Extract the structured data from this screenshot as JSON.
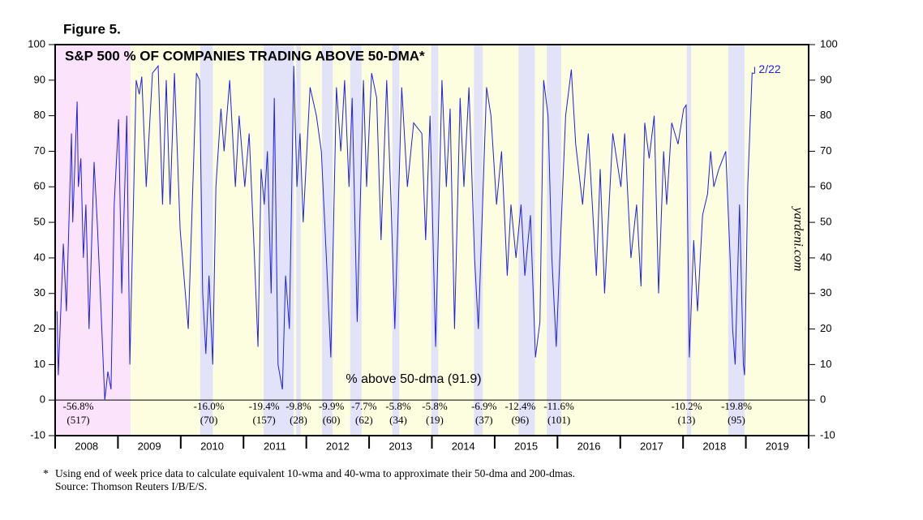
{
  "chart_data": {
    "type": "line",
    "figure_label": "Figure 5.",
    "title": "S&P 500 % OF COMPANIES TRADING ABOVE 50-DMA*",
    "annotation": "% above 50-dma (91.9)",
    "last_date_label": "2/22",
    "watermark": "yardeni.com",
    "footnote_mark": "*",
    "footnote": "Using end of week price data to calculate equivalent 10-wma and 40-wma to approximate their 50-dma and 200-dmas.",
    "source": "Source: Thomson Reuters I/B/E/S.",
    "xlim": [
      2008,
      2020
    ],
    "xticks": [
      2008,
      2009,
      2010,
      2011,
      2012,
      2013,
      2014,
      2015,
      2016,
      2017,
      2018,
      2019,
      2020
    ],
    "year_labels": [
      "2008",
      "2009",
      "2010",
      "2011",
      "2012",
      "2013",
      "2014",
      "2015",
      "2016",
      "2017",
      "2018",
      "2019"
    ],
    "ylim": [
      -10,
      100
    ],
    "yticks": [
      -10,
      0,
      10,
      20,
      30,
      40,
      50,
      60,
      70,
      80,
      90,
      100
    ],
    "background_color": "#fdfde0",
    "bear_color": "#fbe3fb",
    "correction_color": "#e2e2f8",
    "color": "#1f1fe6",
    "corrections": [
      {
        "start": 2008.0,
        "end": 2009.2,
        "pct": "-56.8%",
        "days": "(517)"
      },
      {
        "start": 2010.31,
        "end": 2010.51,
        "pct": "-16.0%",
        "days": "(70)"
      },
      {
        "start": 2011.32,
        "end": 2011.8,
        "pct": "-19.4%",
        "days": "(157)"
      },
      {
        "start": 2011.84,
        "end": 2011.91,
        "pct": "-9.8%",
        "days": "(28)"
      },
      {
        "start": 2012.25,
        "end": 2012.42,
        "pct": "-9.9%",
        "days": "(60)"
      },
      {
        "start": 2012.7,
        "end": 2012.88,
        "pct": "-7.7%",
        "days": "(62)"
      },
      {
        "start": 2013.37,
        "end": 2013.48,
        "pct": "-5.8%",
        "days": "(34)"
      },
      {
        "start": 2013.99,
        "end": 2014.1,
        "pct": "-5.8%",
        "days": "(19)"
      },
      {
        "start": 2014.67,
        "end": 2014.81,
        "pct": "-6.9%",
        "days": "(37)"
      },
      {
        "start": 2015.38,
        "end": 2015.64,
        "pct": "-12.4%",
        "days": "(96)"
      },
      {
        "start": 2015.83,
        "end": 2016.06,
        "pct": "-11.6%",
        "days": "(101)"
      },
      {
        "start": 2018.06,
        "end": 2018.13,
        "pct": "-10.2%",
        "days": "(13)"
      },
      {
        "start": 2018.72,
        "end": 2018.98,
        "pct": "-19.8%",
        "days": "(95)"
      }
    ],
    "x": [
      2008.03,
      2008.05,
      2008.13,
      2008.18,
      2008.26,
      2008.28,
      2008.35,
      2008.37,
      2008.41,
      2008.45,
      2008.49,
      2008.54,
      2008.62,
      2008.67,
      2008.72,
      2008.79,
      2008.84,
      2008.89,
      2008.94,
      2009.01,
      2009.06,
      2009.1,
      2009.14,
      2009.19,
      2009.29,
      2009.34,
      2009.38,
      2009.45,
      2009.55,
      2009.64,
      2009.71,
      2009.77,
      2009.83,
      2009.9,
      2009.99,
      2010.12,
      2010.25,
      2010.3,
      2010.35,
      2010.4,
      2010.45,
      2010.51,
      2010.56,
      2010.64,
      2010.69,
      2010.78,
      2010.87,
      2010.93,
      2011.02,
      2011.09,
      2011.17,
      2011.23,
      2011.28,
      2011.33,
      2011.38,
      2011.44,
      2011.49,
      2011.55,
      2011.62,
      2011.67,
      2011.73,
      2011.8,
      2011.85,
      2011.9,
      2011.95,
      2012.06,
      2012.16,
      2012.24,
      2012.32,
      2012.39,
      2012.48,
      2012.55,
      2012.61,
      2012.68,
      2012.73,
      2012.81,
      2012.91,
      2012.96,
      2013.04,
      2013.12,
      2013.19,
      2013.28,
      2013.35,
      2013.41,
      2013.52,
      2013.61,
      2013.71,
      2013.84,
      2013.9,
      2013.97,
      2014.06,
      2014.16,
      2014.23,
      2014.29,
      2014.36,
      2014.45,
      2014.51,
      2014.59,
      2014.68,
      2014.74,
      2014.87,
      2014.94,
      2015.03,
      2015.11,
      2015.2,
      2015.26,
      2015.34,
      2015.42,
      2015.48,
      2015.57,
      2015.65,
      2015.72,
      2015.78,
      2015.85,
      2015.91,
      2015.98,
      2016.06,
      2016.13,
      2016.22,
      2016.29,
      2016.4,
      2016.49,
      2016.62,
      2016.68,
      2016.75,
      2016.88,
      2017.01,
      2017.07,
      2017.17,
      2017.26,
      2017.33,
      2017.39,
      2017.46,
      2017.54,
      2017.61,
      2017.69,
      2017.74,
      2017.82,
      2017.92,
      2018.01,
      2018.05,
      2018.1,
      2018.17,
      2018.23,
      2018.31,
      2018.39,
      2018.44,
      2018.49,
      2018.57,
      2018.68,
      2018.75,
      2018.79,
      2018.83,
      2018.9,
      2018.96,
      2018.98,
      2019.03,
      2019.1,
      2019.14
    ],
    "values": [
      25,
      7,
      44,
      25,
      75,
      50,
      84,
      60,
      68,
      40,
      55,
      20,
      67,
      50,
      30,
      0,
      8,
      3,
      55,
      79,
      30,
      55,
      80,
      10,
      90,
      86,
      91,
      60,
      92,
      94,
      55,
      90,
      55,
      92,
      48,
      20,
      92,
      90,
      30,
      13,
      35,
      10,
      60,
      82,
      70,
      90,
      60,
      80,
      60,
      75,
      42,
      15,
      65,
      55,
      70,
      30,
      85,
      10,
      3,
      35,
      20,
      94,
      60,
      75,
      50,
      88,
      80,
      70,
      40,
      12,
      88,
      70,
      90,
      60,
      85,
      22,
      90,
      60,
      92,
      85,
      45,
      90,
      55,
      20,
      88,
      60,
      78,
      75,
      45,
      80,
      15,
      90,
      60,
      82,
      20,
      85,
      60,
      88,
      40,
      20,
      88,
      80,
      55,
      70,
      35,
      55,
      40,
      55,
      35,
      52,
      12,
      22,
      90,
      80,
      40,
      15,
      50,
      80,
      93,
      72,
      55,
      75,
      35,
      65,
      30,
      75,
      60,
      75,
      40,
      55,
      32,
      78,
      68,
      80,
      30,
      70,
      55,
      78,
      72,
      82,
      83,
      12,
      45,
      25,
      52,
      58,
      70,
      60,
      65,
      70,
      40,
      20,
      10,
      55,
      10,
      7,
      60,
      92,
      91.9
    ]
  }
}
